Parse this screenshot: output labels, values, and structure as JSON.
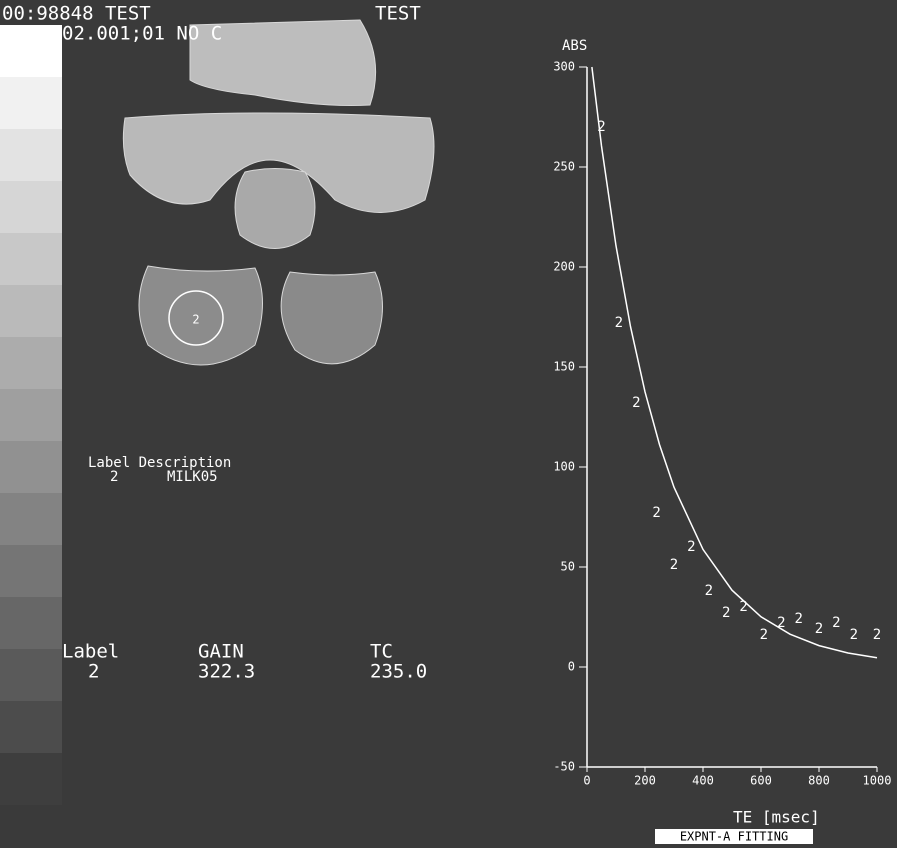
{
  "header": {
    "line1": "00:98848  TEST",
    "line1_right": "TEST",
    "line2": "02.001;01 NO C"
  },
  "image": {
    "roi_label": "2"
  },
  "legend_panel": {
    "heading": "Label Description",
    "rows": [
      [
        "2",
        "MILK05"
      ]
    ]
  },
  "results": {
    "headers": [
      "Label",
      "GAIN",
      "TC"
    ],
    "rows": [
      [
        "2",
        "322.3",
        "235.0"
      ]
    ]
  },
  "chart_data": {
    "type": "scatter",
    "y_label": "ABS",
    "x_label": "TE  [msec]",
    "caption": "EXPNT-A FITTING",
    "xlim": [
      0,
      1000
    ],
    "xticks": [
      0,
      200,
      400,
      600,
      800,
      1000
    ],
    "ylim": [
      -50,
      300
    ],
    "yticks": [
      -50,
      0,
      50,
      100,
      150,
      200,
      250,
      300
    ],
    "color": "#ffffff",
    "series": [
      {
        "name": "2",
        "x": [
          50,
          110,
          170,
          240,
          300,
          360,
          420,
          480,
          540,
          610,
          670,
          730,
          800,
          860,
          920,
          1000
        ],
        "values": [
          270,
          172,
          132,
          77,
          51,
          60,
          38,
          27,
          30,
          16,
          22,
          24,
          19,
          22,
          16,
          16
        ]
      }
    ],
    "fit": {
      "x": [
        17,
        50,
        100,
        150,
        200,
        250,
        300,
        400,
        500,
        600,
        700,
        800,
        900,
        1000
      ],
      "values": [
        300,
        260.5,
        210.6,
        170.2,
        137.6,
        111.2,
        89.9,
        58.8,
        38.4,
        25.1,
        16.4,
        10.7,
        7.0,
        4.6
      ]
    }
  }
}
